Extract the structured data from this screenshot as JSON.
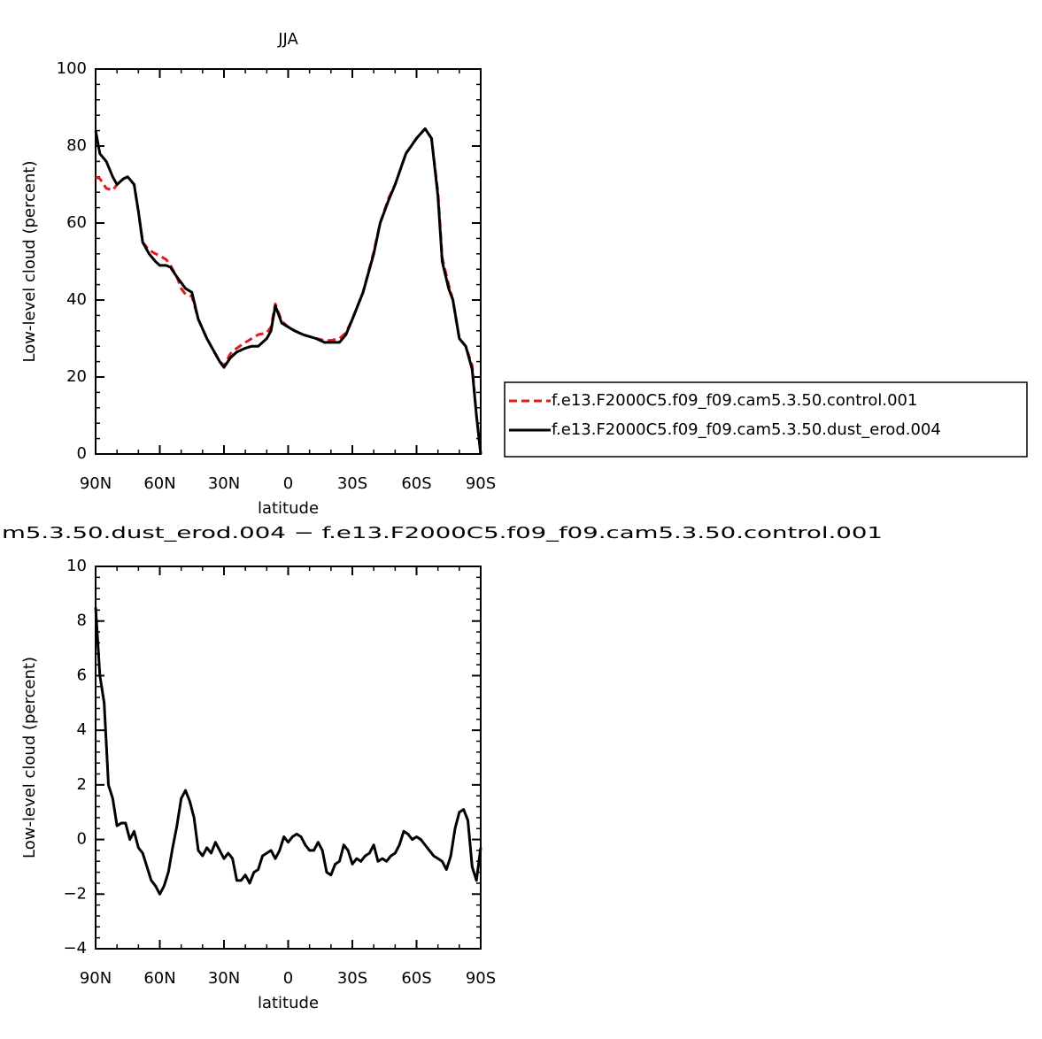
{
  "chart_data": [
    {
      "type": "line",
      "title": "JJA",
      "xlabel": "latitude",
      "ylabel": "Low-level cloud (percent)",
      "x": [
        90,
        88,
        85,
        82,
        80,
        77,
        75,
        72,
        70,
        68,
        65,
        62,
        60,
        57,
        55,
        52,
        50,
        48,
        45,
        42,
        38,
        35,
        32,
        30,
        27,
        24,
        20,
        17,
        14,
        10,
        8,
        6,
        3,
        0,
        -3,
        -7,
        -10,
        -13,
        -17,
        -20,
        -24,
        -27,
        -30,
        -35,
        -40,
        -43,
        -47,
        -50,
        -55,
        -60,
        -64,
        -67,
        -70,
        -72,
        -75,
        -77,
        -80,
        -83,
        -86,
        -88,
        -90
      ],
      "series": [
        {
          "name": "f.e13.F2000C5.f09_f09.cam5.3.50.control.001",
          "color": "#e41a1c",
          "dashed": true,
          "values": [
            72,
            71.5,
            69,
            68.5,
            70,
            71.5,
            72,
            70,
            63,
            55,
            53,
            52,
            51.5,
            50.5,
            49,
            46,
            43,
            41.5,
            41,
            35,
            30,
            27,
            24,
            23,
            26,
            27.5,
            29,
            30,
            31,
            31.5,
            33,
            39,
            34.5,
            33,
            32,
            31,
            30.5,
            30,
            29.5,
            29.5,
            30,
            31.5,
            35,
            42,
            52.5,
            60,
            66.5,
            70,
            78,
            82,
            84.5,
            82,
            68,
            51,
            44,
            40,
            30,
            28,
            23,
            10,
            0
          ]
        },
        {
          "name": "f.e13.F2000C5.f09_f09.cam5.3.50.dust_erod.004",
          "color": "#000000",
          "dashed": false,
          "values": [
            84,
            78,
            76,
            72,
            70,
            71.5,
            72,
            70,
            63,
            55,
            52,
            50,
            49,
            49,
            48.5,
            46,
            44.5,
            43,
            42,
            35,
            30,
            27,
            24,
            22.5,
            25,
            26.5,
            27.5,
            28,
            28,
            30,
            32,
            38.5,
            34,
            33,
            32,
            31,
            30.5,
            30,
            29,
            29,
            29,
            31,
            35,
            42,
            52,
            60,
            66,
            70,
            78,
            82,
            84.5,
            82,
            67,
            50,
            43,
            40,
            30,
            28,
            22,
            10,
            0
          ]
        }
      ],
      "xlim": [
        90,
        -90
      ],
      "ylim": [
        0,
        100
      ],
      "xticks": [
        {
          "value": 90,
          "label": "90N"
        },
        {
          "value": 60,
          "label": "60N"
        },
        {
          "value": 30,
          "label": "30N"
        },
        0,
        {
          "value": -30,
          "label": "30S"
        },
        {
          "value": -60,
          "label": "60S"
        },
        {
          "value": -90,
          "label": "90S"
        }
      ],
      "yticks": [
        0,
        20,
        40,
        60,
        80,
        100
      ],
      "legend": "right"
    },
    {
      "type": "line",
      "title": "m5.3.50.dust_erod.004 − f.e13.F2000C5.f09_f09.cam5.3.50.control.001",
      "xlabel": "latitude",
      "ylabel": "Low-level cloud (percent)",
      "x": [
        90,
        88,
        86,
        84,
        82,
        80,
        78,
        76,
        74,
        72,
        70,
        68,
        66,
        64,
        62,
        60,
        58,
        56,
        54,
        52,
        50,
        48,
        46,
        44,
        42,
        40,
        38,
        36,
        34,
        32,
        30,
        28,
        26,
        24,
        22,
        20,
        18,
        16,
        14,
        12,
        10,
        8,
        6,
        4,
        2,
        0,
        -2,
        -4,
        -6,
        -8,
        -10,
        -12,
        -14,
        -16,
        -18,
        -20,
        -22,
        -24,
        -26,
        -28,
        -30,
        -32,
        -34,
        -36,
        -38,
        -40,
        -42,
        -44,
        -46,
        -48,
        -50,
        -52,
        -54,
        -56,
        -58,
        -60,
        -62,
        -64,
        -66,
        -68,
        -70,
        -72,
        -74,
        -76,
        -78,
        -80,
        -82,
        -84,
        -86,
        -88,
        -90
      ],
      "series": [
        {
          "color": "#000000",
          "dashed": false,
          "values": [
            8.5,
            6,
            5,
            2,
            1.5,
            0.5,
            0.6,
            0.6,
            0,
            0.3,
            -0.3,
            -0.5,
            -1,
            -1.5,
            -1.7,
            -2,
            -1.7,
            -1.2,
            -0.3,
            0.5,
            1.5,
            1.8,
            1.4,
            0.8,
            -0.4,
            -0.6,
            -0.3,
            -0.5,
            -0.1,
            -0.4,
            -0.7,
            -0.5,
            -0.7,
            -1.5,
            -1.5,
            -1.3,
            -1.6,
            -1.2,
            -1.1,
            -0.6,
            -0.5,
            -0.4,
            -0.7,
            -0.4,
            0.1,
            -0.1,
            0.1,
            0.2,
            0.1,
            -0.2,
            -0.4,
            -0.4,
            -0.1,
            -0.4,
            -1.2,
            -1.3,
            -0.9,
            -0.8,
            -0.2,
            -0.4,
            -0.9,
            -0.7,
            -0.8,
            -0.6,
            -0.5,
            -0.2,
            -0.8,
            -0.7,
            -0.8,
            -0.6,
            -0.5,
            -0.2,
            0.3,
            0.2,
            0,
            0.1,
            0,
            -0.2,
            -0.4,
            -0.6,
            -0.7,
            -0.8,
            -1.1,
            -0.6,
            0.4,
            1,
            1.1,
            0.7,
            -1,
            -1.5,
            -0.3
          ]
        }
      ],
      "xlim": [
        90,
        -90
      ],
      "ylim": [
        -4,
        10
      ],
      "xticks": [
        {
          "value": 90,
          "label": "90N"
        },
        {
          "value": 60,
          "label": "60N"
        },
        {
          "value": 30,
          "label": "30N"
        },
        0,
        {
          "value": -30,
          "label": "30S"
        },
        {
          "value": -60,
          "label": "60S"
        },
        {
          "value": -90,
          "label": "90S"
        }
      ],
      "yticks": [
        {
          "value": -4,
          "label": "−4"
        },
        {
          "value": -2,
          "label": "−2"
        },
        0,
        2,
        4,
        6,
        8,
        10
      ]
    }
  ]
}
